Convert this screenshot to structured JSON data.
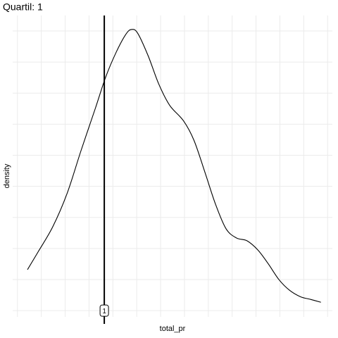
{
  "chart_data": {
    "type": "density",
    "title": "Quartil: 1",
    "x_label": "total_pr",
    "y_label": "density",
    "x": [
      0.21,
      0.44,
      0.74,
      1.04,
      1.33,
      1.63,
      1.85,
      2.07,
      2.27,
      2.39,
      2.52,
      2.74,
      2.96,
      3.19,
      3.48,
      3.7,
      3.93,
      4.15,
      4.37,
      4.59,
      4.81,
      5.04,
      5.26,
      5.48,
      5.7,
      5.93,
      6.15,
      6.36
    ],
    "values": [
      1.32,
      1.91,
      2.7,
      3.77,
      5.14,
      6.5,
      7.52,
      8.32,
      8.89,
      9.05,
      8.93,
      8.2,
      7.3,
      6.61,
      6.11,
      5.48,
      4.45,
      3.43,
      2.64,
      2.34,
      2.25,
      1.95,
      1.5,
      1.0,
      0.66,
      0.45,
      0.36,
      0.27
    ],
    "color": "#000000",
    "vline": 1.82,
    "vline_label": "1",
    "xlim": [
      -0.1,
      6.6
    ],
    "ylim": [
      -0.2,
      9.5
    ],
    "grid": true
  }
}
